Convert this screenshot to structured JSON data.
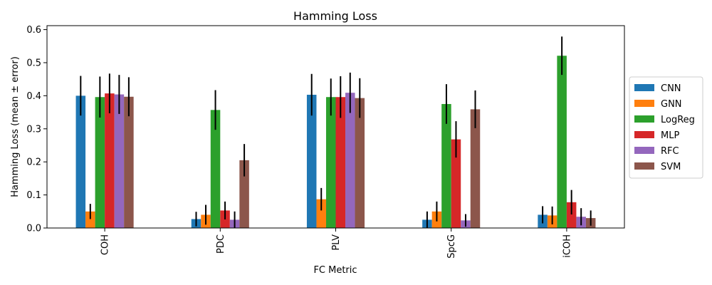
{
  "chart_data": {
    "type": "bar",
    "title": "Hamming Loss",
    "xlabel": "FC Metric",
    "ylabel": "Hamming Loss (mean ± error)",
    "categories": [
      "COH",
      "PDC",
      "PLV",
      "SpcG",
      "iCOH"
    ],
    "ylim": [
      0,
      0.612
    ],
    "yticks": [
      0.0,
      0.1,
      0.2,
      0.3,
      0.4,
      0.5,
      0.6
    ],
    "ytick_labels": [
      "0.0",
      "0.1",
      "0.2",
      "0.3",
      "0.4",
      "0.5",
      "0.6"
    ],
    "grid": false,
    "legend_position": "right-outside",
    "series": [
      {
        "name": "CNN",
        "color": "#1f77b4",
        "values": [
          0.4,
          0.027,
          0.403,
          0.025,
          0.04
        ],
        "errors": [
          0.06,
          0.022,
          0.063,
          0.025,
          0.026
        ]
      },
      {
        "name": "GNN",
        "color": "#ff7f0e",
        "values": [
          0.05,
          0.04,
          0.087,
          0.05,
          0.038
        ],
        "errors": [
          0.023,
          0.03,
          0.034,
          0.03,
          0.027
        ]
      },
      {
        "name": "LogReg",
        "color": "#2ca02c",
        "values": [
          0.396,
          0.357,
          0.396,
          0.375,
          0.521
        ],
        "errors": [
          0.062,
          0.06,
          0.056,
          0.06,
          0.058
        ]
      },
      {
        "name": "MLP",
        "color": "#d62728",
        "values": [
          0.407,
          0.053,
          0.396,
          0.268,
          0.078
        ],
        "errors": [
          0.06,
          0.027,
          0.063,
          0.055,
          0.037
        ]
      },
      {
        "name": "RFC",
        "color": "#9467bd",
        "values": [
          0.404,
          0.025,
          0.409,
          0.023,
          0.034
        ],
        "errors": [
          0.059,
          0.025,
          0.061,
          0.019,
          0.026
        ]
      },
      {
        "name": "SVM",
        "color": "#8c564b",
        "values": [
          0.397,
          0.205,
          0.393,
          0.359,
          0.03
        ],
        "errors": [
          0.059,
          0.049,
          0.06,
          0.057,
          0.023
        ]
      }
    ]
  }
}
